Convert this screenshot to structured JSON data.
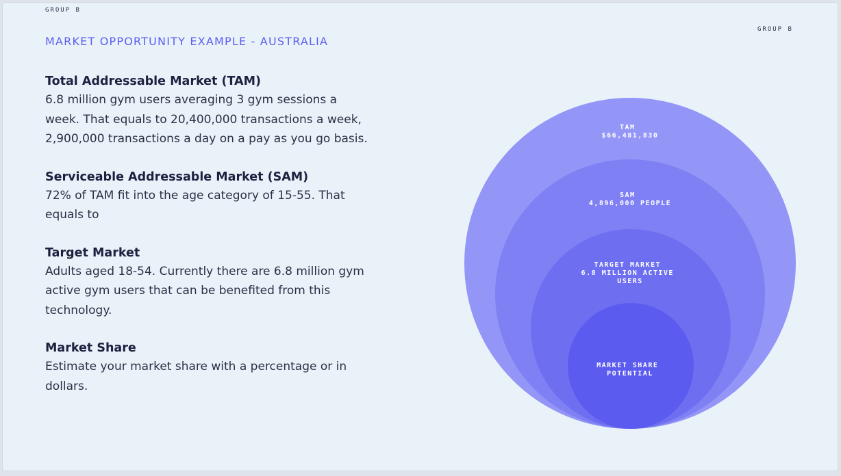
{
  "branding": {
    "logo_left": "GROUP B",
    "logo_right": "GROUP B"
  },
  "title": "MARKET OPPORTUNITY EXAMPLE - AUSTRALIA",
  "sections": [
    {
      "heading": "Total Addressable Market (TAM)",
      "body": "6.8 million gym users averaging 3 gym sessions a week. That equals to 20,400,000 transactions a week, 2,900,000 transactions a day on a pay as you go basis."
    },
    {
      "heading": "Serviceable Addressable Market (SAM)",
      "body": "72% of TAM fit into the age category of 15-55. That equals to"
    },
    {
      "heading": "Target Market",
      "body": "Adults aged 18-54. Currently there are 6.8 million gym active gym users that can be benefited from this technology."
    },
    {
      "heading": "Market Share",
      "body": "Estimate your market share with a percentage or in dollars."
    }
  ],
  "diagram": {
    "circles": [
      {
        "lines": [
          "TAM",
          "$66,481,830"
        ],
        "color": "#9395f7"
      },
      {
        "lines": [
          "SAM",
          "4,896,000 PEOPLE"
        ],
        "color": "#7f80f3"
      },
      {
        "lines": [
          "TARGET MARKET",
          "6.8 MILLION ACTIVE",
          "USERS"
        ],
        "color": "#6e6ff0"
      },
      {
        "lines": [
          "MARKET SHARE",
          "POTENTIAL"
        ],
        "color": "#5b5bef"
      }
    ]
  }
}
